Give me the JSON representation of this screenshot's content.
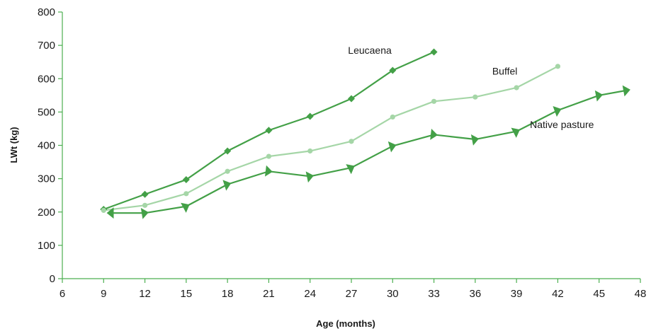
{
  "chart_data": {
    "type": "line",
    "title": "",
    "xlabel": "Age (months)",
    "ylabel": "LWt (kg)",
    "xlim": [
      6,
      48
    ],
    "ylim": [
      0,
      800
    ],
    "xticks": [
      6,
      9,
      12,
      15,
      18,
      21,
      24,
      27,
      30,
      33,
      36,
      39,
      42,
      45,
      48
    ],
    "yticks": [
      0,
      100,
      200,
      300,
      400,
      500,
      600,
      700,
      800
    ],
    "grid": false,
    "legend": "none (series labelled directly on plot)",
    "colors": {
      "axis": "#4caf50",
      "leucaena": "#43a047",
      "buffel": "#a5d6a7",
      "native_pasture": "#43a047"
    },
    "series": [
      {
        "name": "Leucaena",
        "marker": "diamond",
        "x": [
          9,
          12,
          15,
          18,
          21,
          24,
          27,
          30,
          33
        ],
        "y": [
          208,
          253,
          297,
          383,
          445,
          487,
          540,
          625,
          680
        ]
      },
      {
        "name": "Buffel",
        "marker": "circle",
        "x": [
          9,
          12,
          15,
          18,
          21,
          24,
          27,
          30,
          33,
          36,
          39,
          42
        ],
        "y": [
          205,
          220,
          255,
          322,
          367,
          383,
          412,
          485,
          532,
          545,
          573,
          637
        ]
      },
      {
        "name": "Native pasture",
        "marker": "triangle",
        "x": [
          9.5,
          12,
          15,
          18,
          21,
          24,
          27,
          30,
          33,
          36,
          39,
          42,
          45,
          47
        ],
        "y": [
          197,
          197,
          217,
          283,
          322,
          307,
          333,
          398,
          432,
          418,
          442,
          505,
          550,
          565
        ]
      }
    ]
  }
}
